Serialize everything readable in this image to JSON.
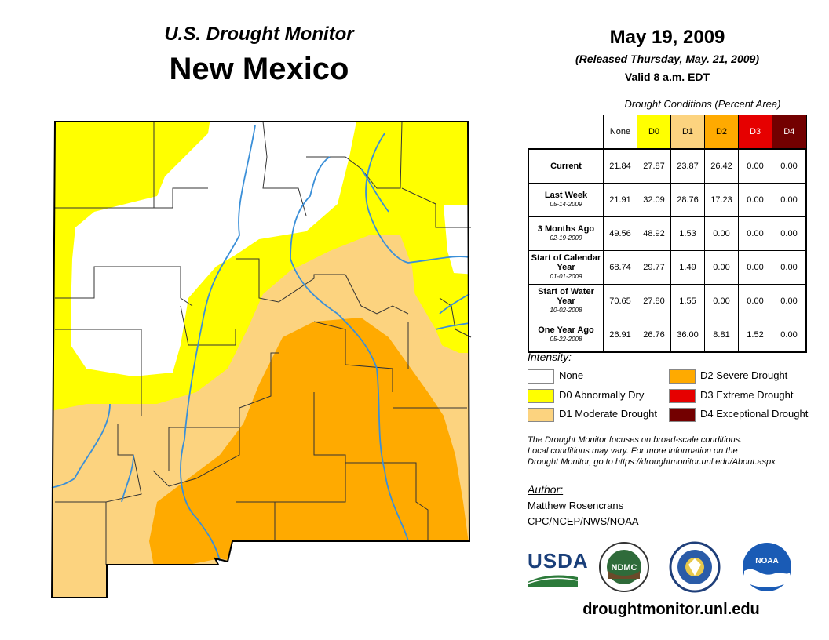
{
  "header": {
    "subtitle": "U.S. Drought Monitor",
    "title": "New Mexico",
    "date": "May 19, 2009",
    "released": "(Released Thursday, May. 21, 2009)",
    "valid": "Valid 8 a.m. EDT"
  },
  "table": {
    "caption": "Drought Conditions (Percent Area)",
    "columns": [
      "None",
      "D0",
      "D1",
      "D2",
      "D3",
      "D4"
    ],
    "column_colors": [
      "#ffffff",
      "#ffff00",
      "#fcd37f",
      "#ffaa00",
      "#e60000",
      "#730000"
    ],
    "rows": [
      {
        "label": "Current",
        "date": "",
        "values": [
          "21.84",
          "27.87",
          "23.87",
          "26.42",
          "0.00",
          "0.00"
        ]
      },
      {
        "label": "Last Week",
        "date": "05-14-2009",
        "values": [
          "21.91",
          "32.09",
          "28.76",
          "17.23",
          "0.00",
          "0.00"
        ]
      },
      {
        "label": "3 Months Ago",
        "date": "02-19-2009",
        "values": [
          "49.56",
          "48.92",
          "1.53",
          "0.00",
          "0.00",
          "0.00"
        ]
      },
      {
        "label": "Start of Calendar Year",
        "date": "01-01-2009",
        "values": [
          "68.74",
          "29.77",
          "1.49",
          "0.00",
          "0.00",
          "0.00"
        ]
      },
      {
        "label": "Start of Water Year",
        "date": "10-02-2008",
        "values": [
          "70.65",
          "27.80",
          "1.55",
          "0.00",
          "0.00",
          "0.00"
        ]
      },
      {
        "label": "One Year Ago",
        "date": "05-22-2008",
        "values": [
          "26.91",
          "26.76",
          "36.00",
          "8.81",
          "1.52",
          "0.00"
        ]
      }
    ]
  },
  "legend": {
    "title": "Intensity:",
    "items": [
      {
        "label": "None",
        "color": "#ffffff"
      },
      {
        "label": "D0 Abnormally Dry",
        "color": "#ffff00"
      },
      {
        "label": "D1 Moderate Drought",
        "color": "#fcd37f"
      },
      {
        "label": "D2 Severe Drought",
        "color": "#ffaa00"
      },
      {
        "label": "D3 Extreme Drought",
        "color": "#e60000"
      },
      {
        "label": "D4 Exceptional Drought",
        "color": "#730000"
      }
    ]
  },
  "note": {
    "line1": "The Drought Monitor focuses on broad-scale conditions.",
    "line2": "Local conditions may vary. For more information on the",
    "line3": "Drought Monitor, go to https://droughtmonitor.unl.edu/About.aspx"
  },
  "author": {
    "title": "Author:",
    "name": "Matthew Rosencrans",
    "org": "CPC/NCEP/NWS/NOAA"
  },
  "logos": {
    "usda": "USDA",
    "ndmc": "NDMC",
    "noaa": "NOAA"
  },
  "website": "droughtmonitor.unl.edu"
}
